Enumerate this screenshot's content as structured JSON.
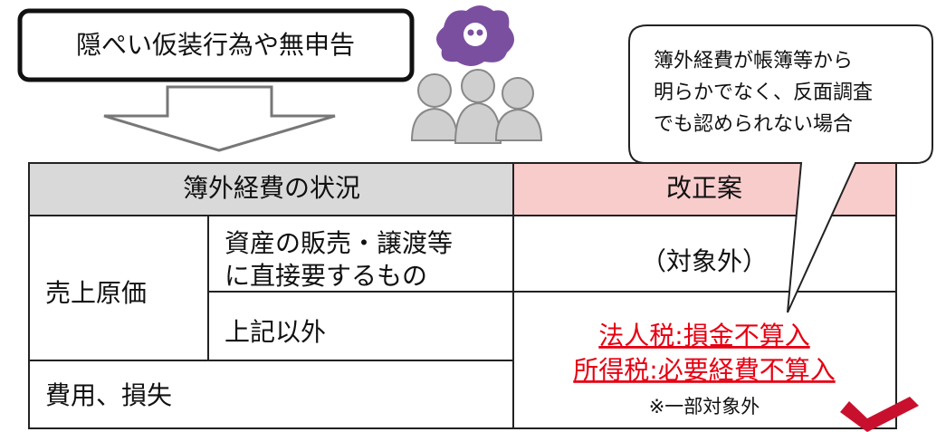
{
  "label": "隠ぺい仮装行為や無申告",
  "bubble": {
    "lines": [
      "簿外経費が帳簿等から",
      "明らかでなく、反面調査",
      "でも認められない場合"
    ]
  },
  "table": {
    "header": {
      "status": "簿外経費の状況",
      "proposal": "改正案"
    },
    "cost_of_sales": {
      "label": "売上原価",
      "direct": {
        "lines": [
          "資産の販売・譲渡等",
          "に直接要するもの"
        ],
        "proposal": "（対象外）"
      },
      "other": {
        "label": "上記以外"
      }
    },
    "expenses": {
      "label": "費用、損失"
    },
    "treatment": {
      "lines": [
        "法人税:損金不算入",
        "所得税:必要経費不算入"
      ],
      "note": "※一部対象外"
    }
  }
}
